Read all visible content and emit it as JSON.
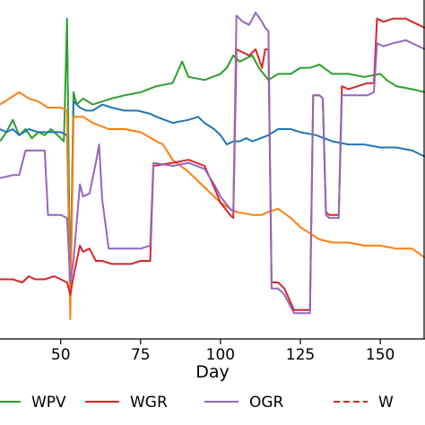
{
  "chart_data": {
    "type": "line",
    "xlabel": "Day",
    "xlim": [
      31,
      164
    ],
    "ylim": [
      0,
      100
    ],
    "xticks": [
      50,
      75,
      100,
      125,
      150
    ],
    "legend": {
      "placement": "bottom",
      "entries": [
        {
          "label": "WPV",
          "color": "#2ca02c",
          "style": "solid"
        },
        {
          "label": "WGR",
          "color": "#d62728",
          "style": "solid"
        },
        {
          "label": "OGR",
          "color": "#9467bd",
          "style": "solid"
        },
        {
          "label": "W",
          "color": "#d62728",
          "style": "dashed"
        }
      ]
    },
    "series": [
      {
        "name": "",
        "color": "#2ca02c",
        "points": [
          [
            31,
            58
          ],
          [
            33,
            61
          ],
          [
            35,
            65
          ],
          [
            37,
            60
          ],
          [
            39,
            62
          ],
          [
            41,
            59
          ],
          [
            43,
            61
          ],
          [
            45,
            60
          ],
          [
            47,
            62
          ],
          [
            49,
            60
          ],
          [
            51,
            58
          ],
          [
            52,
            98
          ],
          [
            53,
            5
          ],
          [
            54,
            74
          ],
          [
            55,
            70
          ],
          [
            57,
            72
          ],
          [
            60,
            70
          ],
          [
            63,
            71
          ],
          [
            66,
            72
          ],
          [
            70,
            73
          ],
          [
            75,
            74
          ],
          [
            80,
            76
          ],
          [
            85,
            77
          ],
          [
            88,
            84
          ],
          [
            90,
            79
          ],
          [
            95,
            78
          ],
          [
            100,
            80
          ],
          [
            102,
            82
          ],
          [
            104,
            86
          ],
          [
            106,
            84
          ],
          [
            110,
            86
          ],
          [
            112,
            82
          ],
          [
            115,
            78
          ],
          [
            118,
            80
          ],
          [
            122,
            80
          ],
          [
            125,
            82
          ],
          [
            128,
            82
          ],
          [
            131,
            83
          ],
          [
            135,
            80
          ],
          [
            140,
            80
          ],
          [
            145,
            79
          ],
          [
            150,
            80
          ],
          [
            152,
            78
          ],
          [
            155,
            76
          ],
          [
            160,
            75
          ],
          [
            164,
            74
          ]
        ]
      },
      {
        "name": "",
        "color": "#1f77b4",
        "points": [
          [
            31,
            62
          ],
          [
            33,
            61
          ],
          [
            35,
            62
          ],
          [
            37,
            60
          ],
          [
            40,
            62
          ],
          [
            43,
            61
          ],
          [
            46,
            61
          ],
          [
            50,
            61
          ],
          [
            52,
            60
          ],
          [
            53,
            8
          ],
          [
            54,
            71
          ],
          [
            56,
            69
          ],
          [
            58,
            68
          ],
          [
            60,
            68
          ],
          [
            63,
            70
          ],
          [
            66,
            69
          ],
          [
            70,
            68
          ],
          [
            74,
            68
          ],
          [
            78,
            67
          ],
          [
            80,
            66
          ],
          [
            85,
            64
          ],
          [
            90,
            65
          ],
          [
            93,
            66
          ],
          [
            95,
            64
          ],
          [
            98,
            62
          ],
          [
            100,
            60
          ],
          [
            102,
            57
          ],
          [
            104,
            58
          ],
          [
            106,
            58
          ],
          [
            108,
            59
          ],
          [
            110,
            58
          ],
          [
            115,
            60
          ],
          [
            118,
            62
          ],
          [
            122,
            62
          ],
          [
            125,
            61
          ],
          [
            130,
            60
          ],
          [
            135,
            58
          ],
          [
            140,
            57
          ],
          [
            145,
            57
          ],
          [
            150,
            56
          ],
          [
            155,
            56
          ],
          [
            160,
            55
          ],
          [
            164,
            53
          ]
        ]
      },
      {
        "name": "",
        "color": "#ff7f0e",
        "points": [
          [
            31,
            70
          ],
          [
            34,
            72
          ],
          [
            37,
            74
          ],
          [
            40,
            72
          ],
          [
            43,
            71
          ],
          [
            46,
            69
          ],
          [
            50,
            69
          ],
          [
            52,
            68
          ],
          [
            53,
            0
          ],
          [
            54,
            66
          ],
          [
            57,
            66
          ],
          [
            60,
            64
          ],
          [
            65,
            62
          ],
          [
            70,
            62
          ],
          [
            75,
            61
          ],
          [
            80,
            58
          ],
          [
            82,
            57
          ],
          [
            85,
            52
          ],
          [
            90,
            48
          ],
          [
            95,
            43
          ],
          [
            100,
            38
          ],
          [
            103,
            36
          ],
          [
            105,
            35
          ],
          [
            110,
            34
          ],
          [
            113,
            34
          ],
          [
            115,
            35
          ],
          [
            118,
            36
          ],
          [
            122,
            33
          ],
          [
            125,
            30
          ],
          [
            128,
            28
          ],
          [
            131,
            26
          ],
          [
            135,
            25
          ],
          [
            140,
            25
          ],
          [
            145,
            24
          ],
          [
            150,
            24
          ],
          [
            155,
            23
          ],
          [
            160,
            23
          ],
          [
            164,
            20
          ]
        ]
      },
      {
        "name": "",
        "color": "#d62728",
        "points": [
          [
            31,
            13
          ],
          [
            35,
            13
          ],
          [
            38,
            12
          ],
          [
            40,
            14
          ],
          [
            42,
            13
          ],
          [
            45,
            13
          ],
          [
            48,
            14
          ],
          [
            50,
            13
          ],
          [
            52,
            12
          ],
          [
            53,
            8
          ],
          [
            54,
            14
          ],
          [
            56,
            24
          ],
          [
            57,
            22
          ],
          [
            59,
            23
          ],
          [
            61,
            19
          ],
          [
            63,
            19
          ],
          [
            66,
            18
          ],
          [
            69,
            18
          ],
          [
            72,
            18
          ],
          [
            75,
            19
          ],
          [
            78,
            19
          ],
          [
            79,
            50
          ],
          [
            85,
            51
          ],
          [
            90,
            52
          ],
          [
            95,
            50
          ],
          [
            98,
            43
          ],
          [
            100,
            38
          ],
          [
            103,
            34
          ],
          [
            104,
            33
          ],
          [
            105,
            88
          ],
          [
            107,
            87
          ],
          [
            109,
            86
          ],
          [
            111,
            88
          ],
          [
            113,
            82
          ],
          [
            114,
            88
          ],
          [
            115,
            88
          ],
          [
            116,
            12
          ],
          [
            118,
            12
          ],
          [
            120,
            10
          ],
          [
            123,
            3
          ],
          [
            126,
            3
          ],
          [
            128,
            3
          ],
          [
            129,
            73
          ],
          [
            130,
            73
          ],
          [
            131,
            73
          ],
          [
            132,
            72
          ],
          [
            133,
            35
          ],
          [
            134,
            34
          ],
          [
            136,
            34
          ],
          [
            137,
            34
          ],
          [
            138,
            76
          ],
          [
            140,
            75
          ],
          [
            143,
            76
          ],
          [
            146,
            77
          ],
          [
            148,
            77
          ],
          [
            149,
            98
          ],
          [
            151,
            97
          ],
          [
            154,
            98
          ],
          [
            158,
            98
          ],
          [
            162,
            96
          ],
          [
            164,
            95
          ]
        ]
      },
      {
        "name": "",
        "color": "#9467bd",
        "points": [
          [
            31,
            46
          ],
          [
            35,
            47
          ],
          [
            37,
            47
          ],
          [
            39,
            55
          ],
          [
            43,
            55
          ],
          [
            45,
            55
          ],
          [
            46,
            34
          ],
          [
            48,
            34
          ],
          [
            50,
            34
          ],
          [
            52,
            33
          ],
          [
            53,
            12
          ],
          [
            54,
            19
          ],
          [
            56,
            44
          ],
          [
            57,
            40
          ],
          [
            59,
            41
          ],
          [
            61,
            51
          ],
          [
            62,
            57
          ],
          [
            63,
            39
          ],
          [
            65,
            23
          ],
          [
            68,
            23
          ],
          [
            72,
            23
          ],
          [
            75,
            23
          ],
          [
            78,
            24
          ],
          [
            79,
            51
          ],
          [
            85,
            50
          ],
          [
            90,
            51
          ],
          [
            95,
            49
          ],
          [
            98,
            44
          ],
          [
            100,
            40
          ],
          [
            103,
            36
          ],
          [
            104,
            35
          ],
          [
            105,
            99
          ],
          [
            107,
            97
          ],
          [
            109,
            96
          ],
          [
            111,
            100
          ],
          [
            113,
            97
          ],
          [
            114,
            95
          ],
          [
            115,
            94
          ],
          [
            116,
            10
          ],
          [
            118,
            10
          ],
          [
            120,
            8
          ],
          [
            123,
            2
          ],
          [
            126,
            2
          ],
          [
            128,
            2
          ],
          [
            129,
            73
          ],
          [
            130,
            73
          ],
          [
            131,
            73
          ],
          [
            132,
            72
          ],
          [
            133,
            34
          ],
          [
            134,
            33
          ],
          [
            136,
            33
          ],
          [
            137,
            33
          ],
          [
            138,
            73
          ],
          [
            140,
            73
          ],
          [
            143,
            73
          ],
          [
            146,
            73
          ],
          [
            148,
            74
          ],
          [
            149,
            90
          ],
          [
            151,
            89
          ],
          [
            154,
            90
          ],
          [
            158,
            91
          ],
          [
            162,
            89
          ],
          [
            164,
            88
          ]
        ]
      }
    ]
  }
}
